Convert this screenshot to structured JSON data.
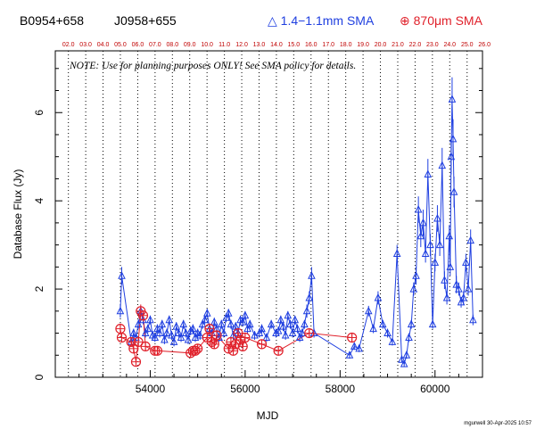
{
  "header": {
    "source_name": "B0954+658",
    "source_alias": "J0958+655",
    "legend_1mm": "△ 1.4−1.1mm SMA",
    "legend_870": "⊕ 870μm SMA"
  },
  "note": "NOTE: Use for planning purposes ONLY!  See SMA policy for details.",
  "footer": "mgurwell 30-Apr-2025 10:57",
  "colors": {
    "series_1mm": "#1f3fe0",
    "series_870": "#e0202a",
    "axes": "#000000"
  },
  "chart_data": {
    "type": "scatter",
    "xlabel": "MJD",
    "ylabel": "Database Flux (Jy)",
    "xlim": [
      52000,
      61000
    ],
    "ylim": [
      0,
      7.4
    ],
    "x_ticks": [
      54000,
      56000,
      58000,
      60000
    ],
    "y_ticks": [
      0,
      2,
      4,
      6
    ],
    "top_axis": {
      "labels": [
        "02.0",
        "03.0",
        "04.0",
        "05.0",
        "06.0",
        "07.0",
        "08.0",
        "09.0",
        "10.0",
        "11.0",
        "12.0",
        "13.0",
        "14.0",
        "15.0",
        "16.0",
        "17.0",
        "18.0",
        "19.0",
        "20.0",
        "21.0",
        "22.0",
        "23.0",
        "24.0",
        "25.0",
        "26.0"
      ],
      "mjd_positions": [
        52276,
        52641,
        53006,
        53371,
        53737,
        54102,
        54467,
        54832,
        55197,
        55563,
        55928,
        56293,
        56658,
        57023,
        57388,
        57754,
        58119,
        58484,
        58849,
        59215,
        59580,
        59945,
        60310,
        60676,
        61041
      ]
    },
    "grid": "vertical dotted lines at each year boundary",
    "legend_placement": "top",
    "series": [
      {
        "name": "1.4-1.1mm SMA",
        "marker": "triangle",
        "error_bars": true,
        "x": [
          53370,
          53400,
          53600,
          53650,
          53700,
          53750,
          53800,
          53850,
          53900,
          53950,
          54000,
          54050,
          54100,
          54150,
          54200,
          54250,
          54300,
          54350,
          54400,
          54450,
          54500,
          54550,
          54600,
          54650,
          54700,
          54750,
          54800,
          54850,
          54900,
          54950,
          55000,
          55050,
          55100,
          55150,
          55200,
          55250,
          55300,
          55350,
          55400,
          55450,
          55500,
          55550,
          55600,
          55650,
          55700,
          55750,
          55800,
          55850,
          55900,
          55950,
          56000,
          56050,
          56100,
          56200,
          56300,
          56350,
          56450,
          56550,
          56650,
          56700,
          56750,
          56800,
          56850,
          56900,
          56950,
          57000,
          57050,
          57100,
          57150,
          57200,
          57250,
          57300,
          57350,
          57400,
          57450,
          58200,
          58300,
          58400,
          58600,
          58700,
          58800,
          58900,
          59000,
          59100,
          59200,
          59300,
          59350,
          59400,
          59450,
          59500,
          59550,
          59600,
          59650,
          59700,
          59750,
          59800,
          59850,
          59900,
          59950,
          60000,
          60050,
          60100,
          60150,
          60200,
          60250,
          60300,
          60320,
          60340,
          60360,
          60380,
          60400,
          60450,
          60500,
          60550,
          60600,
          60650,
          60700,
          60750,
          60800
        ],
        "y": [
          1.5,
          2.3,
          0.8,
          1.0,
          0.9,
          1.2,
          1.5,
          1.3,
          1.0,
          1.1,
          1.3,
          0.95,
          0.9,
          1.1,
          1.0,
          1.2,
          0.85,
          1.0,
          1.3,
          0.95,
          0.8,
          1.15,
          1.0,
          0.9,
          1.2,
          1.0,
          0.85,
          1.05,
          1.1,
          0.9,
          1.0,
          0.95,
          1.2,
          1.3,
          1.45,
          1.1,
          1.0,
          1.25,
          1.1,
          0.9,
          1.2,
          1.0,
          1.35,
          1.45,
          1.2,
          0.95,
          1.15,
          1.0,
          1.3,
          1.25,
          1.4,
          1.1,
          1.2,
          0.95,
          1.0,
          1.1,
          0.9,
          1.2,
          1.0,
          1.05,
          1.3,
          1.15,
          0.95,
          1.4,
          1.2,
          1.0,
          1.3,
          1.1,
          0.9,
          1.0,
          1.2,
          1.5,
          1.8,
          2.3,
          1.0,
          0.5,
          0.7,
          0.65,
          1.5,
          1.1,
          1.8,
          1.2,
          1.0,
          0.8,
          2.8,
          0.4,
          0.3,
          0.5,
          0.9,
          1.2,
          2.0,
          2.3,
          3.8,
          3.2,
          3.5,
          2.8,
          4.6,
          3.0,
          1.2,
          2.6,
          3.6,
          3.0,
          4.8,
          2.2,
          1.8,
          3.2,
          2.5,
          5.0,
          6.3,
          5.4,
          4.2,
          2.1,
          2.0,
          1.7,
          1.8,
          2.6,
          2.0,
          3.1,
          1.3
        ],
        "error": [
          0.15,
          0.2,
          0.1,
          0.1,
          0.1,
          0.1,
          0.12,
          0.1,
          0.1,
          0.1,
          0.1,
          0.1,
          0.1,
          0.1,
          0.1,
          0.1,
          0.1,
          0.1,
          0.1,
          0.1,
          0.1,
          0.1,
          0.1,
          0.1,
          0.1,
          0.1,
          0.1,
          0.1,
          0.1,
          0.1,
          0.1,
          0.1,
          0.1,
          0.1,
          0.1,
          0.1,
          0.1,
          0.1,
          0.1,
          0.1,
          0.1,
          0.1,
          0.1,
          0.1,
          0.1,
          0.1,
          0.1,
          0.1,
          0.1,
          0.1,
          0.1,
          0.1,
          0.1,
          0.1,
          0.1,
          0.1,
          0.1,
          0.1,
          0.1,
          0.1,
          0.1,
          0.1,
          0.1,
          0.1,
          0.1,
          0.1,
          0.1,
          0.1,
          0.1,
          0.1,
          0.1,
          0.15,
          0.15,
          0.2,
          0.1,
          0.08,
          0.08,
          0.08,
          0.12,
          0.1,
          0.15,
          0.1,
          0.1,
          0.08,
          0.2,
          0.06,
          0.06,
          0.08,
          0.1,
          0.1,
          0.15,
          0.2,
          0.3,
          0.25,
          0.3,
          0.2,
          0.35,
          0.25,
          0.1,
          0.2,
          0.3,
          0.25,
          0.4,
          0.2,
          0.15,
          0.25,
          0.2,
          0.4,
          0.5,
          0.45,
          0.35,
          0.2,
          0.15,
          0.12,
          0.15,
          0.2,
          0.15,
          0.25,
          0.12
        ]
      },
      {
        "name": "870μm SMA",
        "marker": "circle-plus",
        "error_bars": true,
        "x": [
          53370,
          53400,
          53600,
          53650,
          53700,
          53750,
          53800,
          53850,
          53900,
          54100,
          54150,
          54850,
          54900,
          54950,
          55000,
          55200,
          55250,
          55300,
          55350,
          55400,
          55650,
          55700,
          55750,
          55800,
          55850,
          55900,
          55950,
          56000,
          56350,
          56700,
          57350,
          58250
        ],
        "y": [
          1.1,
          0.9,
          0.8,
          0.65,
          0.35,
          0.8,
          1.5,
          1.4,
          0.7,
          0.6,
          0.6,
          0.55,
          0.6,
          0.6,
          0.65,
          0.9,
          1.1,
          0.8,
          0.75,
          0.95,
          0.65,
          0.8,
          0.6,
          0.75,
          1.0,
          0.85,
          0.7,
          0.9,
          0.75,
          0.6,
          1.0,
          0.9
        ],
        "error": [
          0.12,
          0.1,
          0.1,
          0.1,
          0.08,
          0.1,
          0.15,
          0.12,
          0.1,
          0.1,
          0.1,
          0.08,
          0.08,
          0.08,
          0.1,
          0.1,
          0.12,
          0.1,
          0.1,
          0.1,
          0.1,
          0.1,
          0.1,
          0.1,
          0.1,
          0.1,
          0.1,
          0.1,
          0.1,
          0.1,
          0.1,
          0.1
        ]
      }
    ]
  }
}
